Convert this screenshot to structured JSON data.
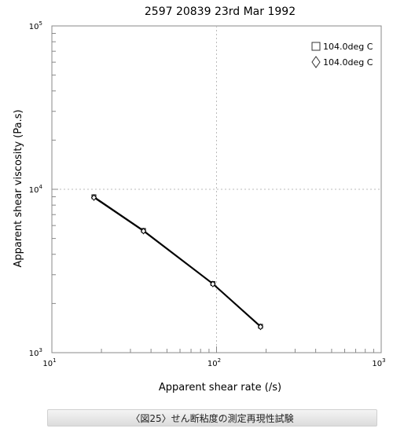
{
  "chart_data": {
    "type": "line",
    "title": "2597   20839   23rd Mar 1992",
    "xlabel": "Apparent shear rate (/s)",
    "ylabel": "Apparent shear viscosity (Pa.s)",
    "xscale": "log",
    "yscale": "log",
    "xlim": [
      10,
      1000
    ],
    "ylim": [
      1000,
      100000
    ],
    "x_ticks": [
      {
        "base": "10",
        "exp": "1"
      },
      {
        "base": "10",
        "exp": "2"
      },
      {
        "base": "10",
        "exp": "3"
      }
    ],
    "y_ticks": [
      {
        "base": "10",
        "exp": "3"
      },
      {
        "base": "10",
        "exp": "4"
      },
      {
        "base": "10",
        "exp": "5"
      }
    ],
    "grid": "dotted at decades",
    "legend_position": "top-right",
    "series": [
      {
        "name": "104.0deg C",
        "marker": "square",
        "x": [
          18,
          36,
          95,
          185
        ],
        "y": [
          9000,
          5600,
          2650,
          1450
        ]
      },
      {
        "name": "104.0deg C",
        "marker": "diamond",
        "x": [
          18,
          36,
          95,
          185
        ],
        "y": [
          8900,
          5550,
          2630,
          1440
        ]
      }
    ]
  },
  "caption": "〈図25〉せん断粘度の測定再現性試験"
}
